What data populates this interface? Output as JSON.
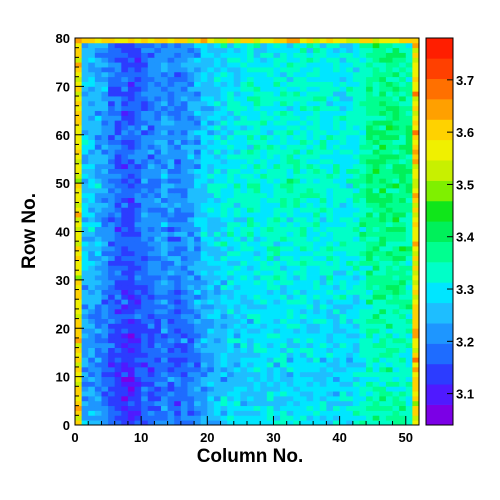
{
  "chart_data": {
    "type": "heatmap",
    "xlabel": "Column No.",
    "ylabel": "Row No.",
    "xlim": [
      0,
      52
    ],
    "ylim": [
      0,
      80
    ],
    "x_ticks": [
      0,
      10,
      20,
      30,
      40,
      50
    ],
    "y_ticks": [
      0,
      10,
      20,
      30,
      40,
      50,
      60,
      70,
      80
    ],
    "colorbar": {
      "range": [
        3.04,
        3.78
      ],
      "ticks": [
        3.1,
        3.2,
        3.3,
        3.4,
        3.5,
        3.6,
        3.7
      ],
      "tick_labels": [
        "3.1",
        "3.2",
        "3.3",
        "3.4",
        "3.5",
        "3.6",
        "3.7"
      ],
      "palette": [
        "#7b00e6",
        "#4f1aff",
        "#2c3cff",
        "#1e6cff",
        "#1e96ff",
        "#1ebeff",
        "#00e6ff",
        "#00ffc8",
        "#00ff90",
        "#00f05a",
        "#10e61a",
        "#7ff000",
        "#c8f000",
        "#f0f000",
        "#ffd200",
        "#ffa000",
        "#ff7000",
        "#ff4000",
        "#ff1e00"
      ]
    },
    "grid": {
      "n_columns": 52,
      "n_rows": 80,
      "column_profile": [
        {
          "column": 0,
          "value": 3.28
        },
        {
          "column": 3,
          "value": 3.24
        },
        {
          "column": 6,
          "value": 3.17
        },
        {
          "column": 8,
          "value": 3.15
        },
        {
          "column": 10,
          "value": 3.19
        },
        {
          "column": 13,
          "value": 3.22
        },
        {
          "column": 15,
          "value": 3.2
        },
        {
          "column": 17,
          "value": 3.22
        },
        {
          "column": 19,
          "value": 3.27
        },
        {
          "column": 23,
          "value": 3.3
        },
        {
          "column": 30,
          "value": 3.32
        },
        {
          "column": 36,
          "value": 3.32
        },
        {
          "column": 40,
          "value": 3.31
        },
        {
          "column": 42,
          "value": 3.32
        },
        {
          "column": 44,
          "value": 3.37
        },
        {
          "column": 47,
          "value": 3.38
        },
        {
          "column": 50,
          "value": 3.36
        },
        {
          "column": 51,
          "value": 3.36
        }
      ],
      "row_profile": [
        {
          "row": 0,
          "delta": -0.02
        },
        {
          "row": 10,
          "delta": -0.04
        },
        {
          "row": 20,
          "delta": -0.03
        },
        {
          "row": 35,
          "delta": 0.0
        },
        {
          "row": 50,
          "delta": 0.01
        },
        {
          "row": 65,
          "delta": 0.0
        },
        {
          "row": 79,
          "delta": -0.01
        }
      ],
      "noise": 0.045,
      "edge_value": 3.58
    }
  }
}
